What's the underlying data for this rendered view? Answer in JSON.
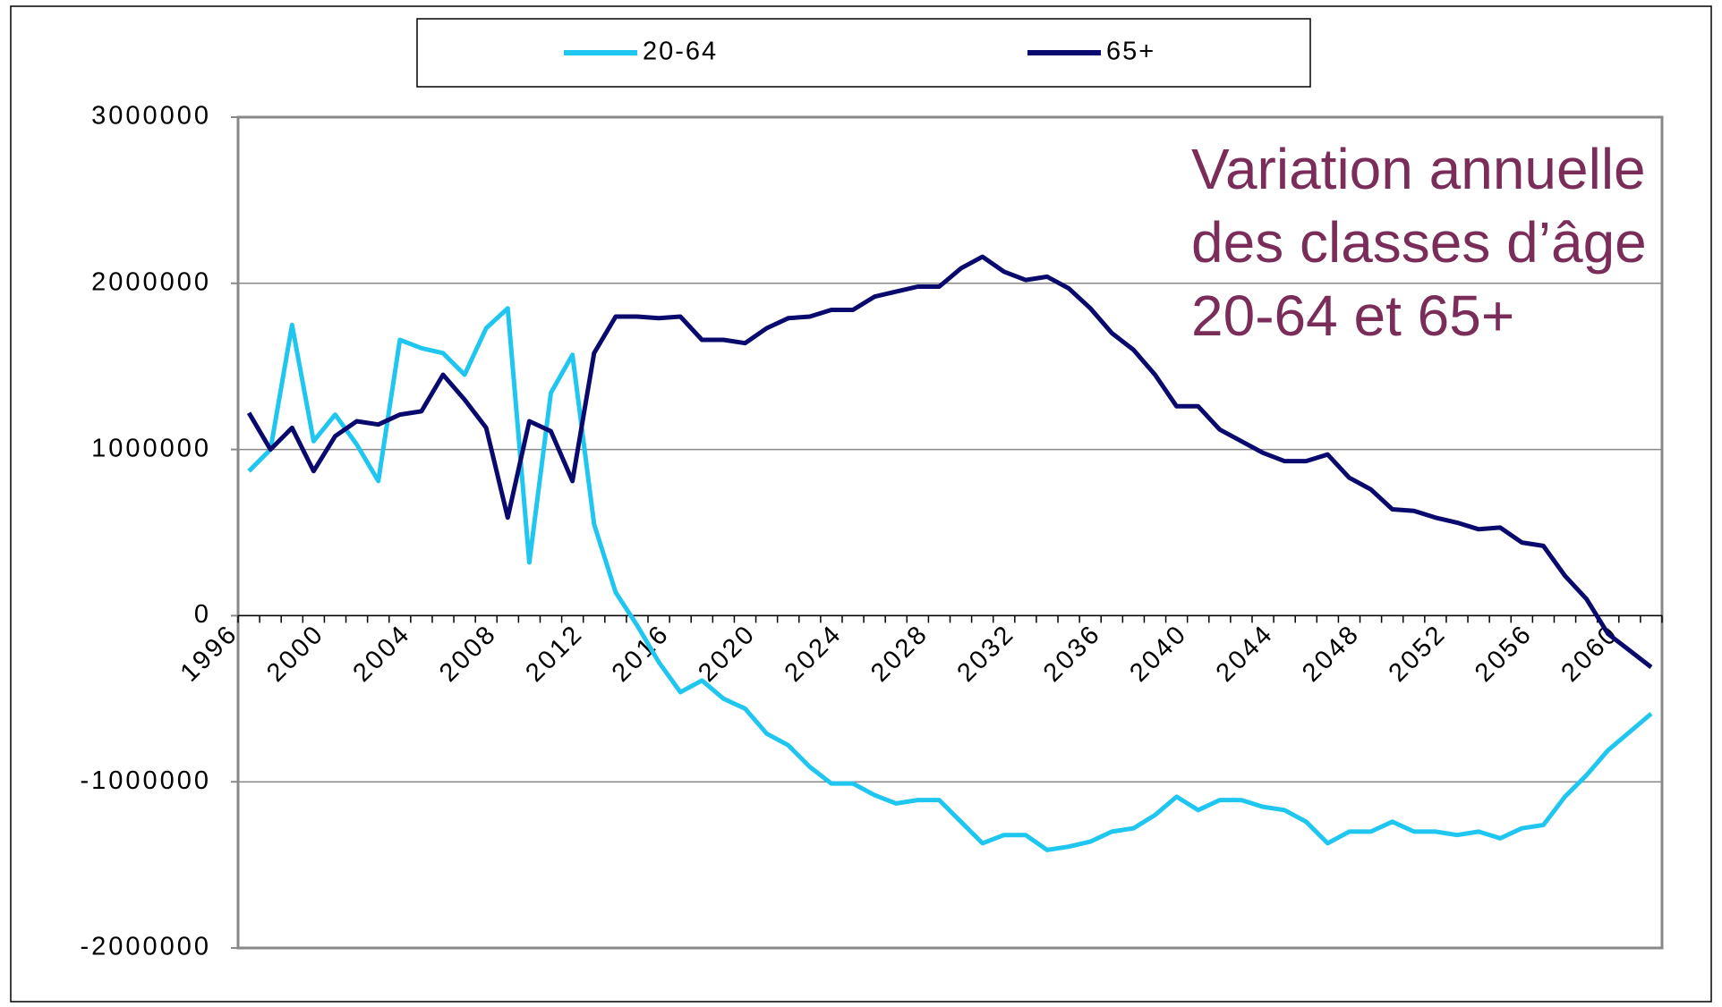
{
  "chart_data": {
    "type": "line",
    "title": [
      "Variation annuelle",
      "des classes d’âge",
      "20-64 et 65+"
    ],
    "categories": [
      1996,
      null,
      null,
      null,
      2000,
      null,
      null,
      null,
      2004,
      null,
      null,
      null,
      2008,
      null,
      null,
      null,
      2012,
      null,
      null,
      null,
      2016,
      null,
      null,
      null,
      2020,
      null,
      null,
      null,
      2024,
      null,
      null,
      null,
      2028,
      null,
      null,
      null,
      2032,
      null,
      null,
      null,
      2036,
      null,
      null,
      null,
      2040,
      null,
      null,
      null,
      2044,
      null,
      null,
      null,
      2048,
      null,
      null,
      null,
      2052,
      null,
      null,
      null,
      2056,
      null,
      null,
      null,
      2060,
      null
    ],
    "series": [
      {
        "name": "20-64",
        "color": "#1ec6f0",
        "values": [
          870000,
          1000000,
          1750000,
          1050000,
          1210000,
          1030000,
          810000,
          1660000,
          1610000,
          1580000,
          1450000,
          1730000,
          1850000,
          320000,
          1340000,
          1570000,
          550000,
          140000,
          -60000,
          -280000,
          -460000,
          -390000,
          -500000,
          -560000,
          -710000,
          -780000,
          -910000,
          -1010000,
          -1010000,
          -1080000,
          -1130000,
          -1110000,
          -1110000,
          -1240000,
          -1370000,
          -1320000,
          -1320000,
          -1410000,
          -1390000,
          -1360000,
          -1300000,
          -1280000,
          -1200000,
          -1090000,
          -1170000,
          -1110000,
          -1110000,
          -1150000,
          -1170000,
          -1240000,
          -1370000,
          -1300000,
          -1300000,
          -1240000,
          -1300000,
          -1300000,
          -1320000,
          -1300000,
          -1340000,
          -1280000,
          -1260000,
          -1090000,
          -960000,
          -810000,
          -700000,
          -590000
        ]
      },
      {
        "name": "65+",
        "color": "#0a0a6e",
        "values": [
          1220000,
          1000000,
          1130000,
          870000,
          1080000,
          1170000,
          1150000,
          1210000,
          1230000,
          1450000,
          1300000,
          1130000,
          590000,
          1170000,
          1110000,
          810000,
          1580000,
          1800000,
          1800000,
          1790000,
          1800000,
          1660000,
          1660000,
          1640000,
          1730000,
          1790000,
          1800000,
          1840000,
          1840000,
          1920000,
          1950000,
          1980000,
          1980000,
          2090000,
          2160000,
          2070000,
          2020000,
          2040000,
          1970000,
          1850000,
          1700000,
          1600000,
          1450000,
          1260000,
          1260000,
          1120000,
          1050000,
          980000,
          930000,
          930000,
          970000,
          830000,
          760000,
          640000,
          630000,
          590000,
          560000,
          520000,
          530000,
          440000,
          420000,
          240000,
          100000,
          -110000,
          -210000,
          -310000
        ]
      }
    ],
    "ylim": [
      -2000000,
      3000000
    ],
    "yticks": [
      -2000000,
      -1000000,
      0,
      1000000,
      2000000,
      3000000
    ],
    "grid": true,
    "legend": "top"
  }
}
